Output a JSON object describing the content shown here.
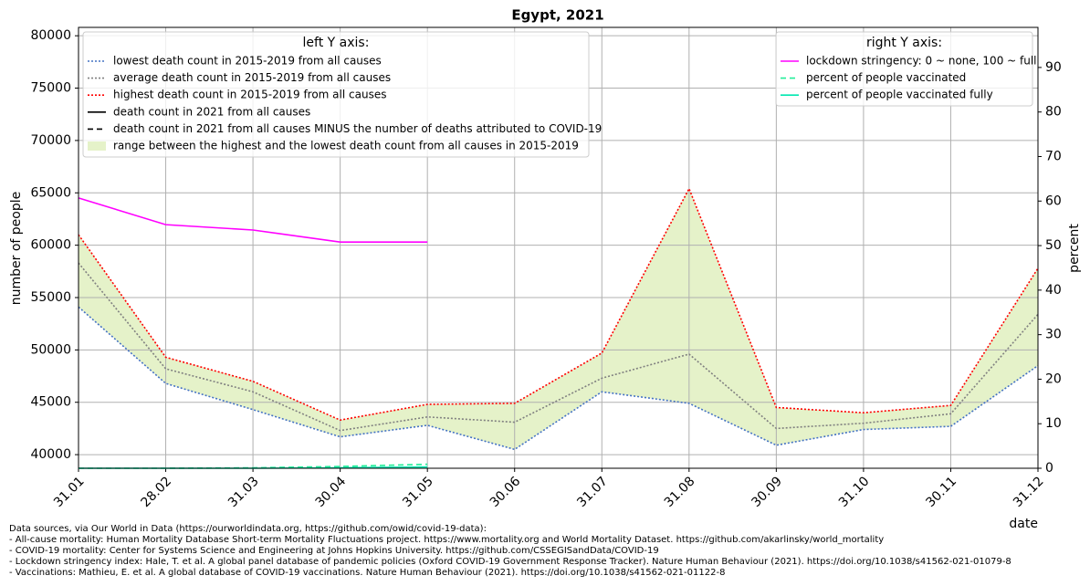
{
  "chart_data": {
    "type": "line",
    "title": "Egypt, 2021",
    "xlabel": "date",
    "ylabel": "number of people",
    "y2label": "percent",
    "categories": [
      "31.01",
      "28.02",
      "31.03",
      "30.04",
      "31.05",
      "30.06",
      "31.07",
      "31.08",
      "30.09",
      "31.10",
      "30.11",
      "31.12"
    ],
    "ylim": [
      38700,
      80800
    ],
    "yticks": [
      40000,
      45000,
      50000,
      55000,
      60000,
      65000,
      70000,
      75000,
      80000
    ],
    "y2lim": [
      0,
      99
    ],
    "y2ticks": [
      0,
      10,
      20,
      30,
      40,
      50,
      60,
      70,
      80,
      90
    ],
    "grid": true,
    "legend_left": {
      "title": "left Y axis:"
    },
    "legend_right": {
      "title": "right Y axis:"
    },
    "series": [
      {
        "name": "lowest death count in 2015-2019 from all causes",
        "color": "#4472c4",
        "style": "dotted",
        "values": [
          54100,
          46800,
          44300,
          41700,
          42800,
          40500,
          46000,
          44900,
          40900,
          42400,
          42700,
          48500
        ]
      },
      {
        "name": "average death count in 2015-2019 from all causes",
        "color": "#808080",
        "style": "dotted",
        "values": [
          58300,
          48200,
          46000,
          42300,
          43600,
          43100,
          47300,
          49600,
          42500,
          43000,
          43900,
          53400
        ]
      },
      {
        "name": "highest death count in 2015-2019 from all causes",
        "color": "#ff0000",
        "style": "dotted",
        "values": [
          61000,
          49300,
          47000,
          43300,
          44800,
          44900,
          49700,
          65400,
          44500,
          44000,
          44700,
          57800
        ]
      },
      {
        "name": "death count in 2021 from all causes",
        "color": "#000000",
        "style": "solid",
        "values": [
          null,
          null,
          null,
          null,
          null,
          null,
          null,
          null,
          null,
          null,
          null,
          null
        ]
      },
      {
        "name": "death count in 2021 from all causes MINUS the number of deaths attributed to COVID-19",
        "color": "#000000",
        "style": "dashed",
        "values": [
          null,
          null,
          null,
          null,
          null,
          null,
          null,
          null,
          null,
          null,
          null,
          null
        ]
      },
      {
        "name": "lockdown stringency: 0 ~ none, 100 ~ full",
        "color": "#ff00ff",
        "style": "solid",
        "axis": "y2",
        "values": [
          60.7,
          54.7,
          53.5,
          50.8,
          50.8,
          null,
          null,
          null,
          null,
          null,
          null,
          null
        ]
      },
      {
        "name": "percent of people vaccinated",
        "color": "#22ee99",
        "style": "dashed",
        "axis": "y2",
        "values": [
          0,
          0,
          0.1,
          0.4,
          0.9,
          null,
          null,
          null,
          null,
          null,
          null,
          null
        ]
      },
      {
        "name": "percent of people vaccinated fully",
        "color": "#00e8b0",
        "style": "solid",
        "axis": "y2",
        "values": [
          0,
          0,
          0,
          0.1,
          0.3,
          null,
          null,
          null,
          null,
          null,
          null,
          null
        ]
      }
    ],
    "fill": {
      "name": "range between the highest and the lowest death count from all causes in 2015-2019",
      "color": "#e5f2c9"
    }
  },
  "sources": [
    "Data sources, via Our World in Data (https://ourworldindata.org, https://github.com/owid/covid-19-data):",
    "- All-cause mortality: Human Mortality Database Short-term Mortality Fluctuations project. https://www.mortality.org and World Mortality Dataset. https://github.com/akarlinsky/world_mortality",
    "- COVID-19 mortality: Center for Systems Science and Engineering at Johns Hopkins University. https://github.com/CSSEGISandData/COVID-19",
    "- Lockdown stringency index: Hale, T. et al. A global panel database of pandemic policies (Oxford COVID-19 Government Response Tracker). Nature Human Behaviour (2021). https://doi.org/10.1038/s41562-021-01079-8",
    "- Vaccinations: Mathieu, E. et al. A global database of COVID-19 vaccinations. Nature Human Behaviour (2021). https://doi.org/10.1038/s41562-021-01122-8"
  ]
}
